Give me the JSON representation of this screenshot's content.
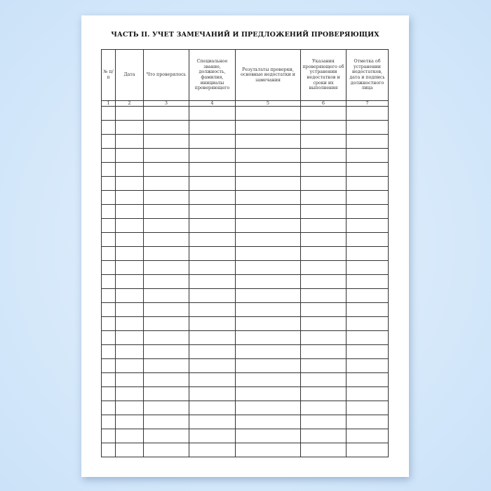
{
  "document": {
    "title": "ЧАСТЬ II. УЧЕТ ЗАМЕЧАНИЙ И ПРЕДЛОЖЕНИЙ ПРОВЕРЯЮЩИХ",
    "table": {
      "columns": [
        {
          "header": "№ п/п",
          "number": "1"
        },
        {
          "header": "Дата",
          "number": "2"
        },
        {
          "header": "Что проверялось",
          "number": "3"
        },
        {
          "header": "Специальное звание, должность, фамилия, инициалы проверяющего",
          "number": "4"
        },
        {
          "header": "Результаты проверки, основные недостатки и замечания",
          "number": "5"
        },
        {
          "header": "Указания проверяющего об устранении недостатков и сроки их выполнения",
          "number": "6"
        },
        {
          "header": "Отметка об устранении недостатков, дата и подпись должностного лица",
          "number": "7"
        }
      ],
      "empty_rows": 25
    }
  }
}
